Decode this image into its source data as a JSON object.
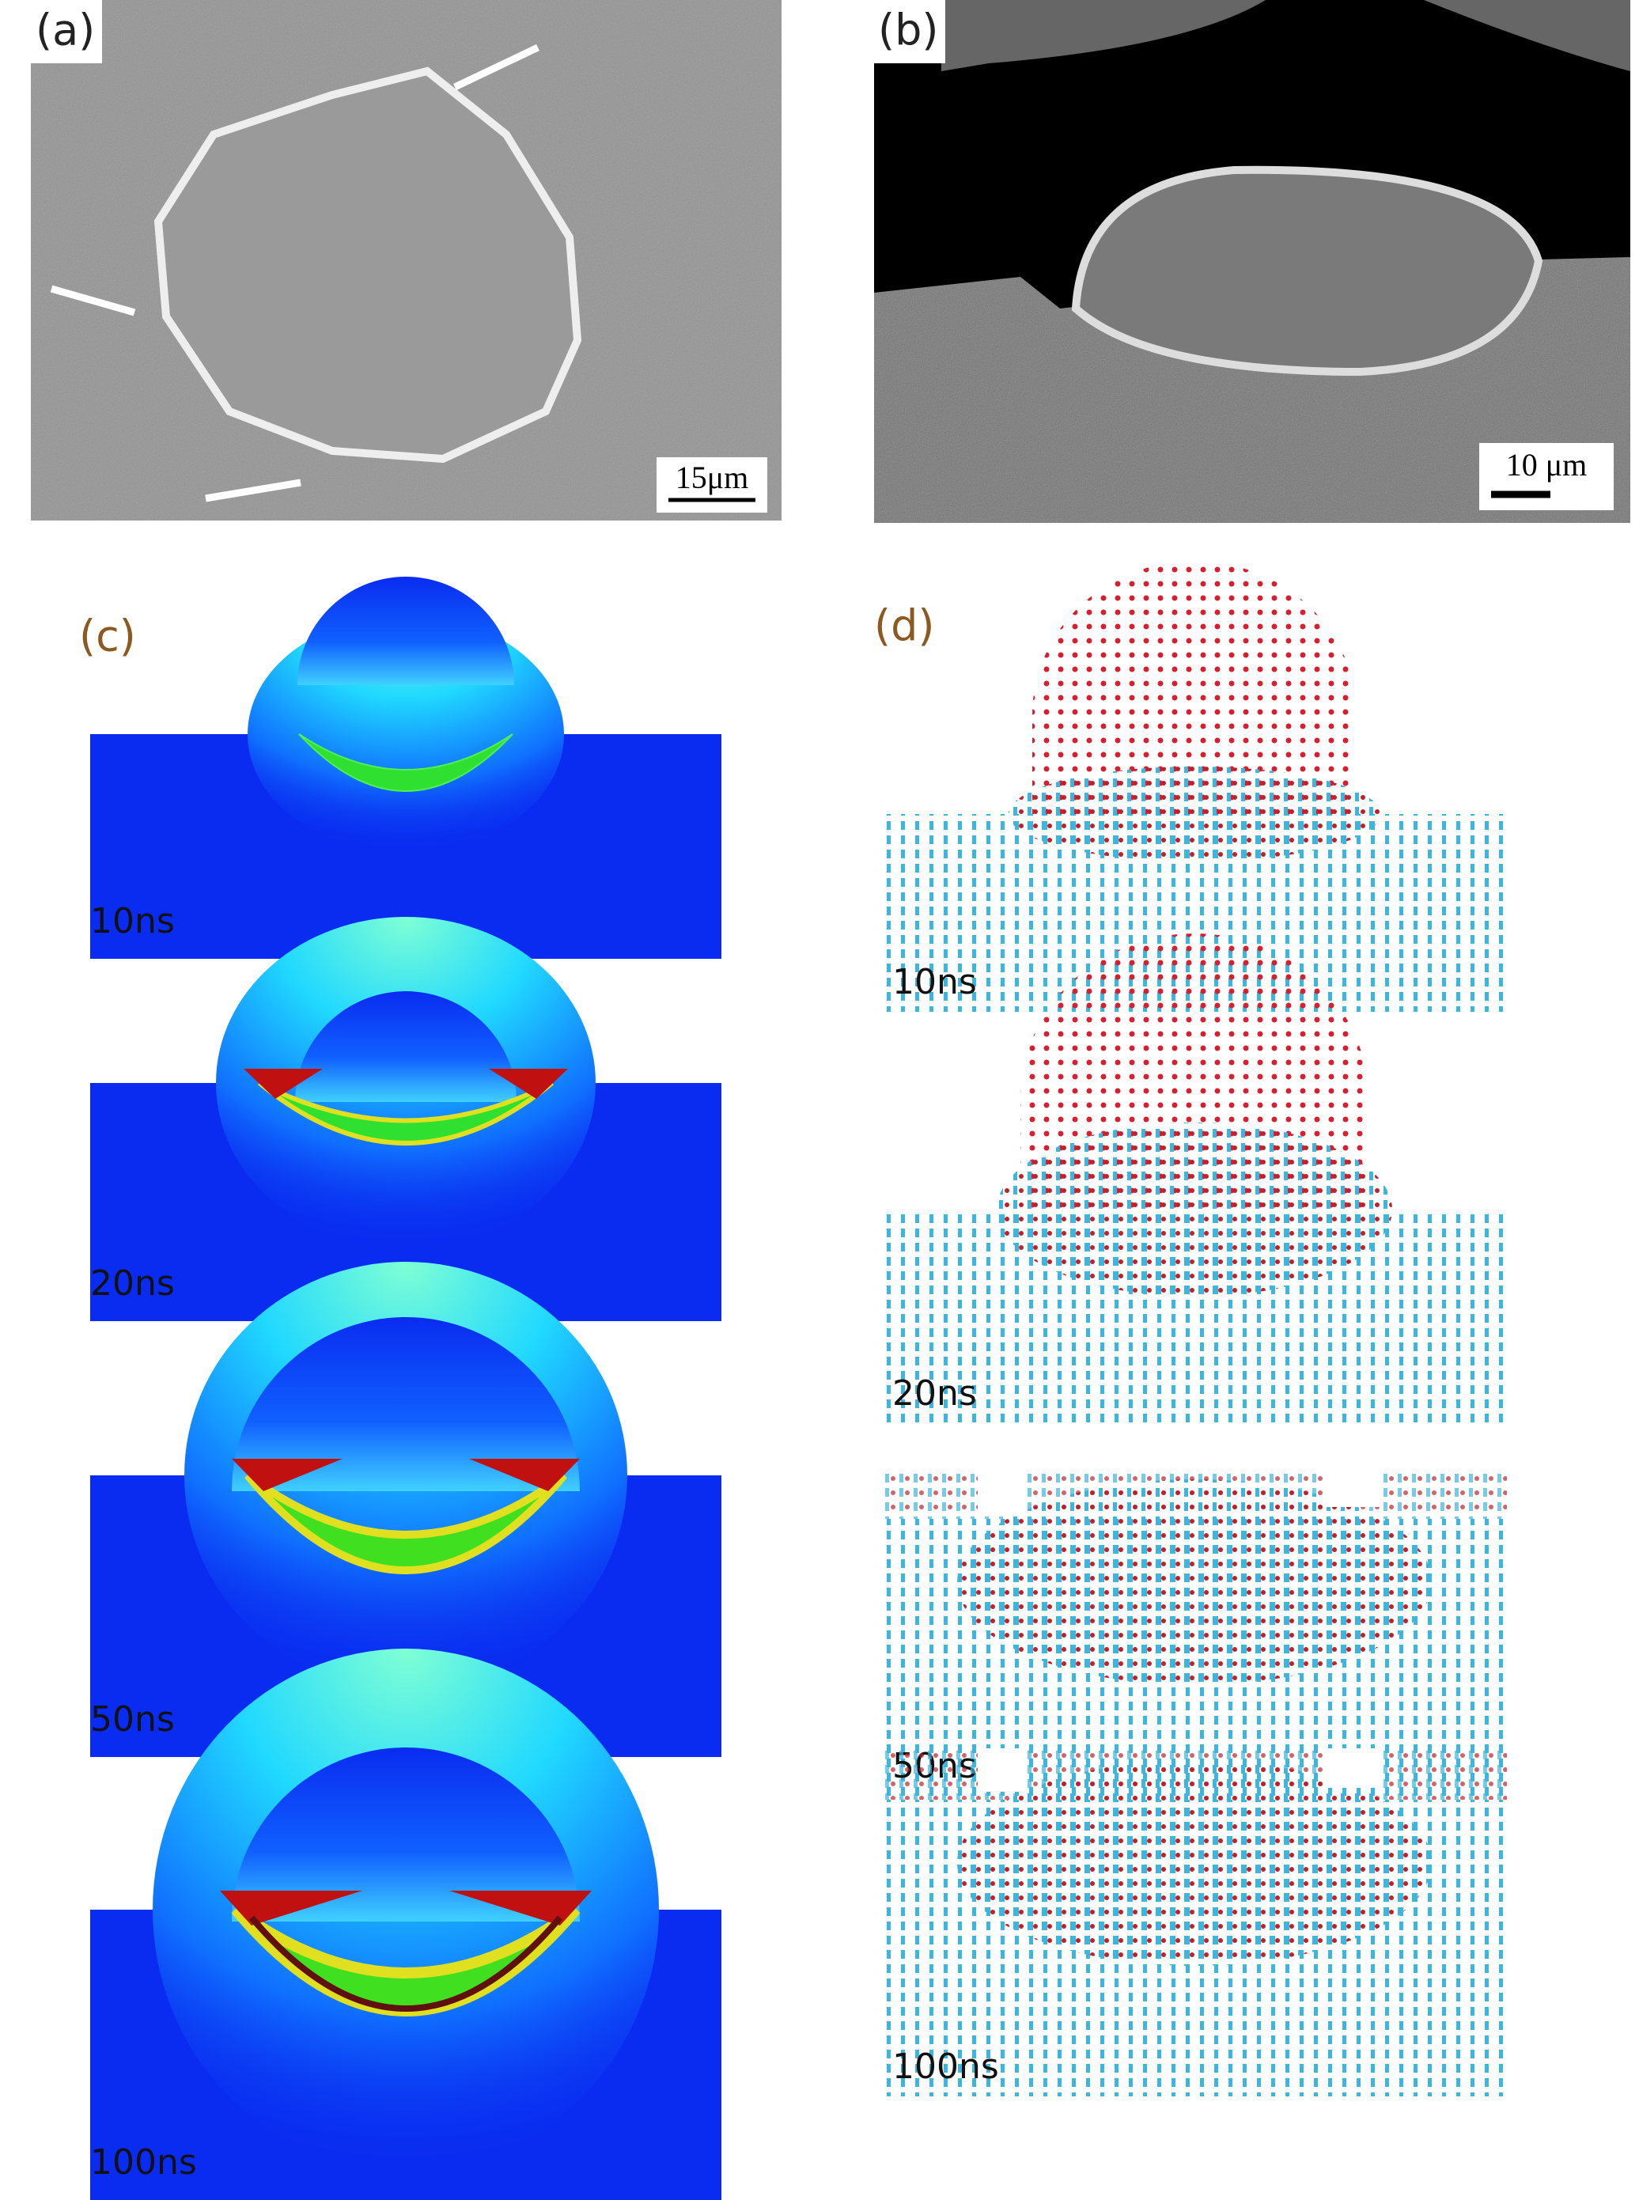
{
  "panels": [
    {
      "label": "(a)",
      "scale_bar": "15μm"
    },
    {
      "label": "(b)",
      "scale_bar": "10 μm"
    },
    {
      "label": "(c)",
      "frames": [
        "10ns",
        "20ns",
        "50ns",
        "100ns"
      ]
    },
    {
      "label": "(d)",
      "frames": [
        "10ns",
        "20ns",
        "50ns",
        "100ns"
      ]
    }
  ]
}
